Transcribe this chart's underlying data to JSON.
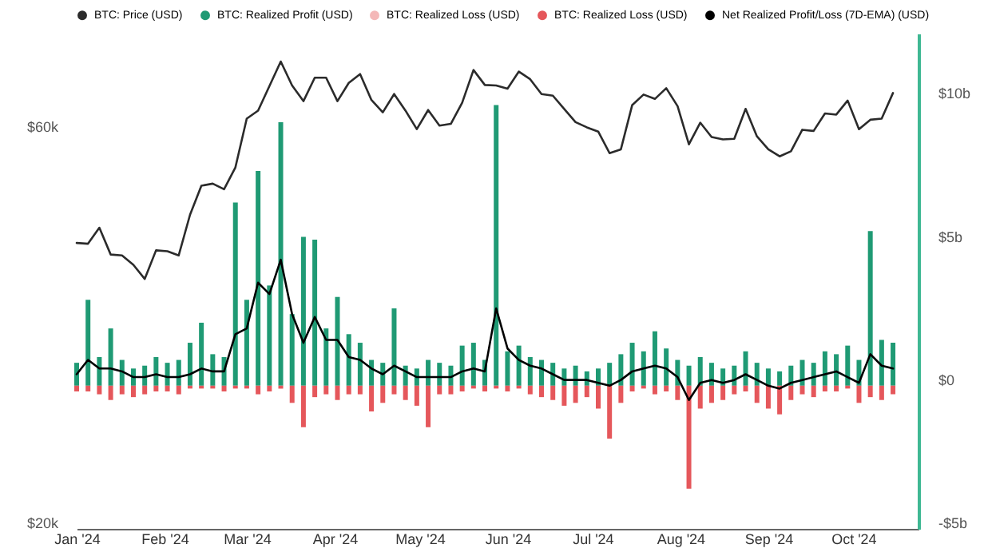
{
  "chart_data": {
    "type": "bar",
    "x": [
      "2024-01-01",
      "2024-01-05",
      "2024-01-09",
      "2024-01-13",
      "2024-01-17",
      "2024-01-21",
      "2024-01-25",
      "2024-01-29",
      "2024-02-02",
      "2024-02-06",
      "2024-02-10",
      "2024-02-14",
      "2024-02-18",
      "2024-02-22",
      "2024-02-26",
      "2024-03-01",
      "2024-03-05",
      "2024-03-09",
      "2024-03-13",
      "2024-03-17",
      "2024-03-21",
      "2024-03-25",
      "2024-03-29",
      "2024-04-02",
      "2024-04-06",
      "2024-04-10",
      "2024-04-14",
      "2024-04-18",
      "2024-04-22",
      "2024-04-26",
      "2024-04-30",
      "2024-05-04",
      "2024-05-08",
      "2024-05-12",
      "2024-05-16",
      "2024-05-20",
      "2024-05-24",
      "2024-05-28",
      "2024-06-01",
      "2024-06-05",
      "2024-06-09",
      "2024-06-13",
      "2024-06-17",
      "2024-06-21",
      "2024-06-25",
      "2024-06-29",
      "2024-07-03",
      "2024-07-07",
      "2024-07-11",
      "2024-07-15",
      "2024-07-19",
      "2024-07-23",
      "2024-07-27",
      "2024-07-31",
      "2024-08-04",
      "2024-08-08",
      "2024-08-12",
      "2024-08-16",
      "2024-08-20",
      "2024-08-24",
      "2024-08-28",
      "2024-09-01",
      "2024-09-05",
      "2024-09-09",
      "2024-09-13",
      "2024-09-17",
      "2024-09-21",
      "2024-09-25",
      "2024-09-29",
      "2024-10-03",
      "2024-10-07",
      "2024-10-11",
      "2024-10-15"
    ],
    "xlim": [
      "2024-01-01",
      "2024-10-24"
    ],
    "xticks": [
      {
        "value": "2024-01-01",
        "label": "Jan '24"
      },
      {
        "value": "2024-02-01",
        "label": "Feb '24"
      },
      {
        "value": "2024-03-01",
        "label": "Mar '24"
      },
      {
        "value": "2024-04-01",
        "label": "Apr '24"
      },
      {
        "value": "2024-05-01",
        "label": "May '24"
      },
      {
        "value": "2024-06-01",
        "label": "Jun '24"
      },
      {
        "value": "2024-07-01",
        "label": "Jul '24"
      },
      {
        "value": "2024-08-01",
        "label": "Aug '24"
      },
      {
        "value": "2024-09-01",
        "label": "Sep '24"
      },
      {
        "value": "2024-10-01",
        "label": "Oct '24"
      }
    ],
    "log": "y",
    "ylim": [
      20,
      79
    ],
    "yticks": [
      {
        "value": 20,
        "label": "$20k"
      },
      {
        "value": 60,
        "label": "$60k"
      }
    ],
    "y2lim": [
      -5,
      12.3
    ],
    "y2ticks": [
      {
        "value": -5,
        "label": "-$5b"
      },
      {
        "value": 0,
        "label": "$0"
      },
      {
        "value": 5,
        "label": "$5b"
      },
      {
        "value": 10,
        "label": "$10b"
      }
    ],
    "legend": "top",
    "stacked": true,
    "series": [
      {
        "name": "BTC: Price (USD)",
        "type": "line",
        "color": "#2b2b2b",
        "values": [
          44.2,
          44.1,
          46.1,
          42.8,
          42.7,
          41.6,
          40.0,
          43.3,
          43.2,
          42.7,
          47.8,
          51.8,
          52.1,
          51.3,
          54.5,
          62.4,
          63.8,
          68.3,
          73.1,
          68.4,
          65.5,
          69.9,
          69.9,
          65.5,
          68.9,
          70.6,
          65.7,
          63.5,
          66.8,
          63.8,
          60.6,
          63.9,
          61.2,
          61.5,
          65.2,
          71.4,
          68.5,
          68.4,
          67.8,
          71.1,
          69.6,
          66.8,
          66.5,
          64.1,
          61.8,
          60.9,
          60.2,
          56.7,
          57.3,
          64.8,
          66.7,
          65.9,
          67.9,
          64.6,
          58.1,
          61.7,
          59.3,
          58.9,
          59.0,
          64.1,
          59.4,
          57.3,
          56.2,
          57.0,
          60.5,
          60.3,
          63.3,
          63.1,
          65.6,
          60.6,
          62.2,
          62.4,
          67.0
        ]
      },
      {
        "name": "BTC: Realized Profit (USD)",
        "axis": "y2",
        "color": "#1f9a74",
        "values": [
          0.8,
          3.0,
          1.0,
          2.0,
          0.9,
          0.6,
          0.7,
          1.0,
          0.8,
          0.9,
          1.5,
          2.2,
          1.1,
          1.0,
          6.4,
          3.0,
          7.5,
          3.5,
          9.2,
          2.5,
          5.2,
          5.1,
          2.0,
          3.1,
          1.8,
          1.5,
          0.9,
          0.8,
          2.7,
          0.7,
          0.6,
          0.9,
          0.8,
          0.7,
          1.4,
          1.5,
          0.9,
          9.8,
          1.2,
          1.4,
          1.0,
          0.9,
          0.8,
          0.6,
          0.7,
          0.5,
          0.6,
          0.8,
          1.1,
          1.5,
          1.2,
          1.9,
          1.3,
          0.9,
          0.7,
          1.0,
          0.8,
          0.6,
          0.7,
          1.2,
          0.8,
          0.6,
          0.5,
          0.7,
          0.9,
          0.8,
          1.2,
          1.1,
          1.4,
          0.9,
          5.4,
          1.6,
          1.5
        ]
      },
      {
        "name": "BTC: Realized Loss (USD)",
        "axis": "y2",
        "color": "#f4b8b8",
        "values": [
          null,
          null,
          null,
          null,
          null,
          null,
          null,
          null,
          null,
          null,
          null,
          null,
          null,
          null,
          null,
          null,
          null,
          null,
          null,
          null,
          null,
          null,
          null,
          null,
          null,
          null,
          null,
          null,
          null,
          null,
          null,
          null,
          null,
          null,
          null,
          null,
          null,
          null,
          null,
          null,
          null,
          null,
          null,
          null,
          null,
          null,
          null,
          null,
          null,
          null,
          null,
          null,
          null,
          null,
          null,
          null,
          null,
          null,
          null,
          null,
          null,
          null,
          null,
          null,
          null,
          null,
          null,
          null,
          null,
          null,
          null,
          null,
          null
        ]
      },
      {
        "name": "BTC: Realized Loss (USD)",
        "axis": "y2",
        "color": "#e5575b",
        "values": [
          -0.2,
          -0.2,
          -0.3,
          -0.5,
          -0.3,
          -0.4,
          -0.3,
          -0.2,
          -0.2,
          -0.3,
          -0.1,
          -0.1,
          -0.1,
          -0.2,
          -0.1,
          -0.1,
          -0.3,
          -0.2,
          -0.1,
          -0.6,
          -1.45,
          -0.4,
          -0.3,
          -0.5,
          -0.3,
          -0.3,
          -0.9,
          -0.6,
          -0.3,
          -0.5,
          -0.7,
          -1.45,
          -0.3,
          -0.3,
          -0.2,
          -0.1,
          -0.2,
          -0.1,
          -0.2,
          -0.1,
          -0.3,
          -0.4,
          -0.5,
          -0.7,
          -0.6,
          -0.4,
          -0.8,
          -1.85,
          -0.6,
          -0.2,
          -0.1,
          -0.3,
          -0.2,
          -0.5,
          -3.6,
          -0.8,
          -0.6,
          -0.5,
          -0.3,
          -0.2,
          -0.6,
          -0.8,
          -1.0,
          -0.5,
          -0.3,
          -0.4,
          -0.2,
          -0.2,
          -0.1,
          -0.6,
          -0.4,
          -0.5,
          -0.3
        ]
      },
      {
        "name": "Net Realized Profit/Loss (7D-EMA) (USD)",
        "type": "line",
        "axis": "y2",
        "color": "#000000",
        "values": [
          0.4,
          0.9,
          0.6,
          0.6,
          0.5,
          0.3,
          0.3,
          0.4,
          0.3,
          0.3,
          0.4,
          0.6,
          0.5,
          0.5,
          1.8,
          2.0,
          3.6,
          3.2,
          4.4,
          2.5,
          1.5,
          2.4,
          1.6,
          1.6,
          1.0,
          0.9,
          0.6,
          0.4,
          0.7,
          0.5,
          0.3,
          0.3,
          0.3,
          0.3,
          0.5,
          0.6,
          0.5,
          2.7,
          1.3,
          0.9,
          0.7,
          0.6,
          0.4,
          0.2,
          0.2,
          0.2,
          0.1,
          0.0,
          0.2,
          0.5,
          0.6,
          0.7,
          0.6,
          0.3,
          -0.5,
          0.1,
          0.2,
          0.1,
          0.2,
          0.4,
          0.2,
          0.0,
          -0.1,
          0.1,
          0.2,
          0.3,
          0.4,
          0.5,
          0.3,
          0.1,
          1.1,
          0.7,
          0.6
        ]
      }
    ]
  }
}
